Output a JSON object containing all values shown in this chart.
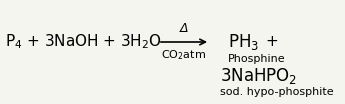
{
  "background_color": "#f5f5f0",
  "reactants": "P$_4$ + 3NaOH + 3H$_2$O",
  "arrow_above": "Δ",
  "arrow_below": "CO$_2$atm",
  "product1": "PH$_3$",
  "product1_label": "Phosphine",
  "plus": "+",
  "product2": "3NaHPO$_2$",
  "product2_label": "sod. hypo-phosphite",
  "fontsize_main": 11,
  "fontsize_label": 8,
  "fontsize_arrow_text": 9
}
